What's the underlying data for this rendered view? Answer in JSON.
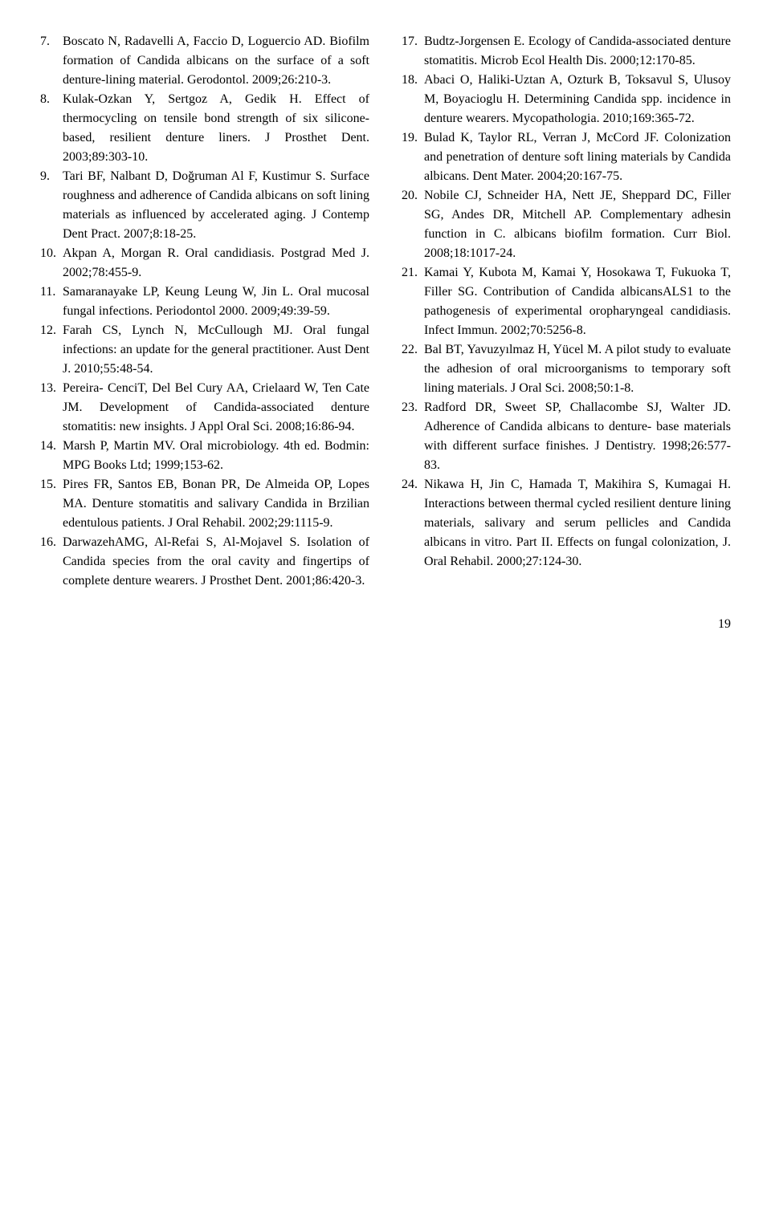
{
  "left": [
    {
      "n": "7.",
      "t": "Boscato N, Radavelli A, Faccio D, Loguercio AD. Biofilm formation of Candida albicans on the surface of a soft denture-lining material. Gerodontol. 2009;26:210-3."
    },
    {
      "n": "8.",
      "t": "Kulak-Ozkan Y, Sertgoz A, Gedik H. Effect of thermocycling on tensile bond strength of six silicone-based, resilient denture liners. J Prosthet Dent. 2003;89:303-10."
    },
    {
      "n": "9.",
      "t": "Tari BF, Nalbant D, Doğruman Al F, Kustimur S. Surface roughness and adherence of Candida albicans on soft lining materials as influenced by accelerated aging. J Contemp Dent Pract. 2007;8:18-25."
    },
    {
      "n": "10.",
      "t": "Akpan A, Morgan R. Oral candidiasis. Postgrad Med J. 2002;78:455-9."
    },
    {
      "n": "11.",
      "t": "Samaranayake LP, Keung Leung W, Jin L. Oral mucosal fungal infections. Periodontol 2000. 2009;49:39-59."
    },
    {
      "n": "12.",
      "t": "Farah CS, Lynch N, McCullough MJ. Oral fungal infections: an update for the general practitioner. Aust Dent J. 2010;55:48-54."
    },
    {
      "n": "13.",
      "t": "Pereira- CenciT, Del Bel Cury AA, Crielaard W, Ten Cate JM. Development of Candida-associated denture stomatitis: new insights. J Appl Oral Sci. 2008;16:86-94."
    },
    {
      "n": "14.",
      "t": "Marsh P, Martin MV. Oral microbiology. 4th ed. Bodmin: MPG Books Ltd; 1999;153-62."
    },
    {
      "n": "15.",
      "t": "Pires FR, Santos EB, Bonan PR, De Almeida OP, Lopes MA. Denture stomatitis and salivary Candida in Brzilian edentulous patients. J Oral Rehabil. 2002;29:1115-9."
    },
    {
      "n": "16.",
      "t": "DarwazehAMG, Al-Refai S, Al-Mojavel S. Isolation of Candida species from the oral cavity and fingertips of complete denture wearers. J Prosthet Dent. 2001;86:420-3."
    }
  ],
  "right": [
    {
      "n": "17.",
      "t": "Budtz-Jorgensen E. Ecology of Candida-associated denture stomatitis. Microb Ecol Health Dis. 2000;12:170-85."
    },
    {
      "n": "18.",
      "t": "Abaci O, Haliki-Uztan A, Ozturk B, Toksavul S, Ulusoy M, Boyacioglu H. Determining Candida spp. incidence in denture wearers. Mycopathologia. 2010;169:365-72."
    },
    {
      "n": "19.",
      "t": "Bulad K, Taylor RL, Verran J, McCord JF. Colonization and penetration of denture soft lining materials by Candida albicans. Dent Mater. 2004;20:167-75."
    },
    {
      "n": "20.",
      "t": "Nobile CJ, Schneider HA, Nett JE, Sheppard DC, Filler SG, Andes DR, Mitchell AP. Complementary adhesin function in C. albicans biofilm formation. Curr Biol. 2008;18:1017-24."
    },
    {
      "n": "21.",
      "t": "Kamai Y, Kubota M, Kamai Y, Hosokawa T, Fukuoka T, Filler SG. Contribution of Candida albicansALS1 to the pathogenesis of experimental oropharyngeal candidiasis. Infect Immun. 2002;70:5256-8."
    },
    {
      "n": "22.",
      "t": "Bal BT, Yavuzyılmaz H, Yücel M. A pilot study to evaluate the adhesion of oral microorganisms to temporary soft lining materials. J Oral Sci. 2008;50:1-8."
    },
    {
      "n": "23.",
      "t": "Radford DR, Sweet SP, Challacombe SJ, Walter JD. Adherence of Candida albicans to denture- base materials with different surface finishes. J Dentistry. 1998;26:577-83."
    },
    {
      "n": "24.",
      "t": "Nikawa H, Jin C, Hamada T, Makihira S, Kumagai H. Interactions between thermal cycled resilient denture lining materials, salivary and serum pellicles and Candida albicans in vitro. Part II. Effects on fungal colonization, J. Oral Rehabil. 2000;27:124-30."
    }
  ],
  "pageNumber": "19"
}
